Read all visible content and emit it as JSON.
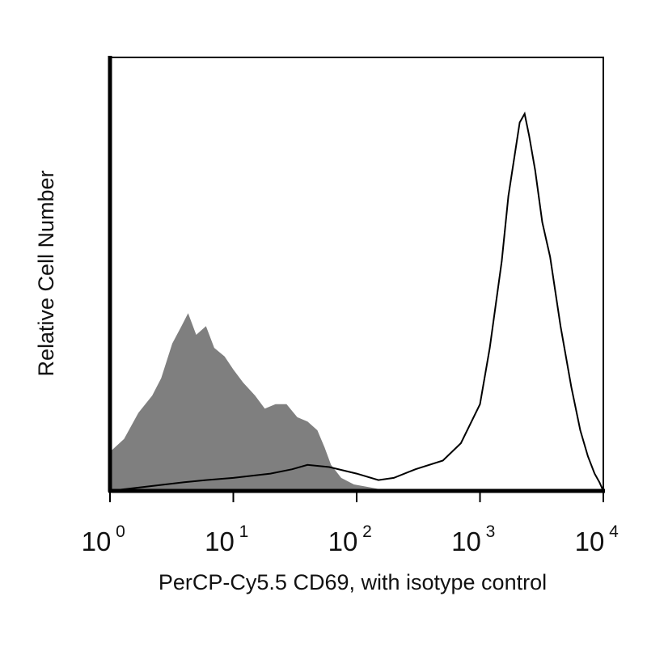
{
  "chart_data": {
    "type": "area",
    "title": "",
    "xlabel": "PerCP-Cy5.5 CD69, with isotype control",
    "ylabel": "Relative Cell Number",
    "x_scale": "log",
    "xlim": [
      1,
      10000
    ],
    "ylim": [
      0,
      1
    ],
    "grid": false,
    "legend": "none",
    "x_ticks": [
      {
        "base": "10",
        "exp": "0"
      },
      {
        "base": "10",
        "exp": "1"
      },
      {
        "base": "10",
        "exp": "2"
      },
      {
        "base": "10",
        "exp": "3"
      },
      {
        "base": "10",
        "exp": "4"
      }
    ],
    "series": [
      {
        "role": "isotype control (filled)",
        "color": "#7f7f7f",
        "x": [
          1,
          1.3,
          1.7,
          2.2,
          2.6,
          3.2,
          3.8,
          4.3,
          5,
          6,
          7,
          8.5,
          10,
          12,
          15,
          18,
          22,
          27,
          33,
          40,
          48,
          55,
          62,
          75,
          95,
          130,
          180
        ],
        "y": [
          0.09,
          0.12,
          0.18,
          0.22,
          0.26,
          0.34,
          0.38,
          0.41,
          0.36,
          0.38,
          0.33,
          0.31,
          0.28,
          0.25,
          0.22,
          0.19,
          0.2,
          0.2,
          0.17,
          0.16,
          0.14,
          0.1,
          0.06,
          0.03,
          0.015,
          0.008,
          0.0
        ]
      },
      {
        "role": "PerCP-Cy5.5 CD69 (outline)",
        "color": "#000000",
        "x": [
          1,
          2,
          4,
          6,
          10,
          20,
          30,
          40,
          60,
          100,
          150,
          200,
          300,
          500,
          700,
          1000,
          1200,
          1500,
          1700,
          1900,
          2100,
          2300,
          2500,
          2800,
          3200,
          3700,
          4500,
          5500,
          6500,
          7500,
          8500,
          9300,
          10000
        ],
        "y": [
          0.0,
          0.01,
          0.02,
          0.025,
          0.03,
          0.04,
          0.05,
          0.06,
          0.055,
          0.04,
          0.025,
          0.03,
          0.05,
          0.07,
          0.11,
          0.2,
          0.33,
          0.53,
          0.68,
          0.77,
          0.85,
          0.87,
          0.82,
          0.74,
          0.62,
          0.54,
          0.38,
          0.24,
          0.14,
          0.08,
          0.04,
          0.02,
          0.0
        ]
      }
    ]
  }
}
